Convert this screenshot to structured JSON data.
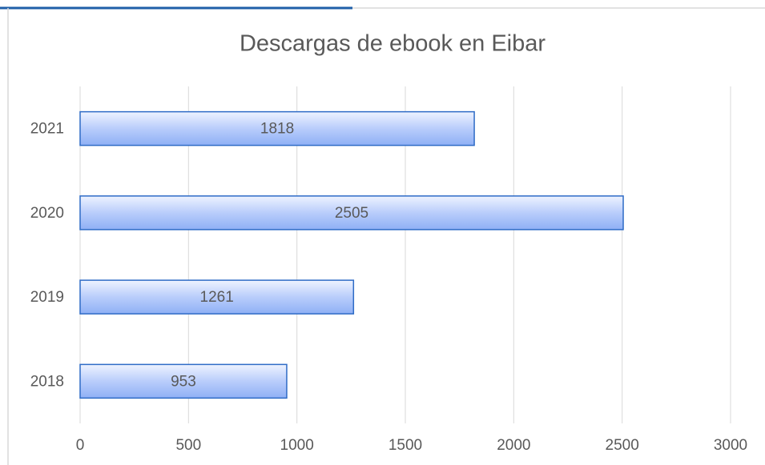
{
  "chart_data": {
    "type": "bar",
    "orientation": "horizontal",
    "title": "Descargas de ebook en Eibar",
    "categories": [
      "2021",
      "2020",
      "2019",
      "2018"
    ],
    "values": [
      1818,
      2505,
      1261,
      953
    ],
    "color": "#4f81e0",
    "xlim": [
      0,
      3000
    ],
    "xticks": [
      0,
      500,
      1000,
      1500,
      2000,
      2500,
      3000
    ],
    "grid": true
  }
}
